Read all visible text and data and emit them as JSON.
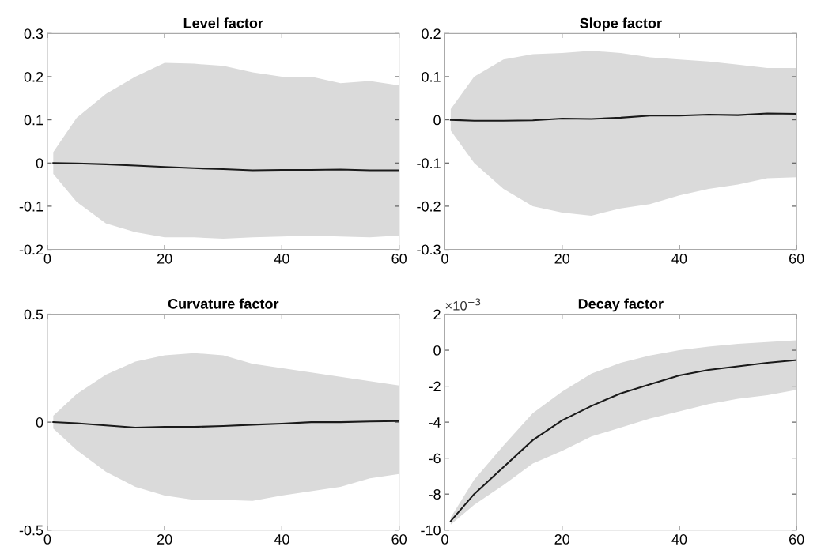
{
  "chart_data": [
    {
      "type": "line",
      "title": "Level factor",
      "xlim": [
        0,
        60
      ],
      "xticks": [
        0,
        20,
        40,
        60
      ],
      "ylim": [
        -0.2,
        0.3
      ],
      "yticks": [
        -0.2,
        -0.1,
        0,
        0.1,
        0.2,
        0.3
      ],
      "grid": false,
      "legend": false,
      "series": [
        {
          "color": "#1a1a1a",
          "x": [
            1,
            5,
            10,
            15,
            20,
            25,
            30,
            35,
            40,
            45,
            50,
            55,
            60
          ],
          "values": [
            0,
            -0.001,
            -0.003,
            -0.006,
            -0.009,
            -0.012,
            -0.014,
            -0.017,
            -0.016,
            -0.016,
            -0.015,
            -0.017,
            -0.017
          ],
          "upper": [
            0.025,
            0.105,
            0.16,
            0.2,
            0.232,
            0.23,
            0.225,
            0.21,
            0.2,
            0.2,
            0.185,
            0.19,
            0.18
          ],
          "lower": [
            -0.025,
            -0.09,
            -0.14,
            -0.16,
            -0.172,
            -0.172,
            -0.175,
            -0.172,
            -0.17,
            -0.168,
            -0.17,
            -0.172,
            -0.168
          ]
        }
      ]
    },
    {
      "type": "line",
      "title": "Slope factor",
      "xlim": [
        0,
        60
      ],
      "xticks": [
        0,
        20,
        40,
        60
      ],
      "ylim": [
        -0.3,
        0.2
      ],
      "yticks": [
        -0.3,
        -0.2,
        -0.1,
        0,
        0.1,
        0.2
      ],
      "grid": false,
      "legend": false,
      "series": [
        {
          "color": "#1a1a1a",
          "x": [
            1,
            5,
            10,
            15,
            20,
            25,
            30,
            35,
            40,
            45,
            50,
            55,
            60
          ],
          "values": [
            0,
            -0.002,
            -0.002,
            -0.001,
            0.003,
            0.002,
            0.005,
            0.01,
            0.01,
            0.012,
            0.011,
            0.015,
            0.014
          ],
          "upper": [
            0.025,
            0.1,
            0.14,
            0.152,
            0.155,
            0.16,
            0.155,
            0.145,
            0.14,
            0.135,
            0.128,
            0.12,
            0.12
          ],
          "lower": [
            -0.025,
            -0.1,
            -0.16,
            -0.2,
            -0.215,
            -0.222,
            -0.205,
            -0.195,
            -0.175,
            -0.16,
            -0.15,
            -0.135,
            -0.133
          ]
        }
      ]
    },
    {
      "type": "line",
      "title": "Curvature factor",
      "xlim": [
        0,
        60
      ],
      "xticks": [
        0,
        20,
        40,
        60
      ],
      "ylim": [
        -0.5,
        0.5
      ],
      "yticks": [
        -0.5,
        0,
        0.5
      ],
      "grid": false,
      "legend": false,
      "series": [
        {
          "color": "#1a1a1a",
          "x": [
            1,
            5,
            10,
            15,
            20,
            25,
            30,
            35,
            40,
            45,
            50,
            55,
            60
          ],
          "values": [
            0,
            -0.005,
            -0.015,
            -0.025,
            -0.022,
            -0.022,
            -0.018,
            -0.012,
            -0.007,
            0,
            0,
            0.003,
            0.005
          ],
          "upper": [
            0.03,
            0.13,
            0.22,
            0.28,
            0.31,
            0.32,
            0.31,
            0.27,
            0.25,
            0.23,
            0.21,
            0.19,
            0.17
          ],
          "lower": [
            -0.03,
            -0.13,
            -0.23,
            -0.3,
            -0.34,
            -0.36,
            -0.36,
            -0.365,
            -0.34,
            -0.32,
            -0.3,
            -0.26,
            -0.24
          ]
        }
      ]
    },
    {
      "type": "line",
      "title": "Decay factor",
      "annotations": [
        "×10$^{−3}$"
      ],
      "xlim": [
        0,
        60
      ],
      "xticks": [
        0,
        20,
        40,
        60
      ],
      "ylim": [
        -10,
        2
      ],
      "yticks": [
        -10,
        -8,
        -6,
        -4,
        -2,
        0,
        2
      ],
      "grid": false,
      "legend": false,
      "series": [
        {
          "color": "#1a1a1a",
          "x": [
            1,
            5,
            10,
            15,
            20,
            25,
            30,
            35,
            40,
            45,
            50,
            55,
            60
          ],
          "values": [
            -9.5,
            -8.0,
            -6.5,
            -5.0,
            -3.9,
            -3.1,
            -2.4,
            -1.9,
            -1.4,
            -1.1,
            -0.9,
            -0.7,
            -0.55
          ],
          "upper": [
            -9.3,
            -7.2,
            -5.3,
            -3.5,
            -2.3,
            -1.3,
            -0.7,
            -0.3,
            0.0,
            0.2,
            0.35,
            0.45,
            0.55
          ],
          "lower": [
            -9.7,
            -8.6,
            -7.5,
            -6.3,
            -5.6,
            -4.8,
            -4.3,
            -3.8,
            -3.4,
            -3.0,
            -2.7,
            -2.5,
            -2.2
          ]
        }
      ]
    }
  ]
}
